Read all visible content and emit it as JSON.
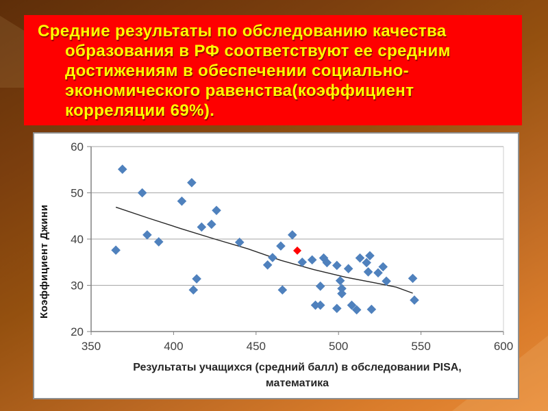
{
  "slide": {
    "title_lines": [
      "Средние результаты по обследованию качества",
      "образования в РФ соответствуют ее средним",
      "достижениям в обеспечении социально-",
      "экономического равенства(коэффициент",
      "корреляции 69%)."
    ],
    "title_bg_color": "#fe0000",
    "title_text_color": "#ffff00"
  },
  "colors": {
    "background_top_left": "#5e2e09",
    "background_bottom_right": "#e98a36",
    "panel_bg": "#ffffff",
    "panel_border": "#8f8f8f",
    "axis": "#808080",
    "gridline": "#a6a6a6",
    "tick_label": "#404040",
    "trend_line": "#262626",
    "point_blue": "#4f81bd",
    "point_red": "#ff0000"
  },
  "chart_data": {
    "type": "scatter",
    "title": "",
    "xlabel": "Результаты учащихся (средний балл) в обследовании PISA, математика",
    "xlabel_lines": [
      "Результаты учащихся (средний балл) в обследовании PISA,",
      "математика"
    ],
    "ylabel": "Коэффициент Джини",
    "xlim": [
      350,
      600
    ],
    "ylim": [
      20,
      60
    ],
    "xticks": [
      350,
      400,
      450,
      500,
      550,
      600
    ],
    "yticks": [
      20,
      30,
      40,
      50,
      60
    ],
    "grid": "horizontal",
    "legend": "none",
    "series": [
      {
        "name": "countries",
        "marker": "diamond",
        "color": "#4f81bd",
        "points": [
          [
            365,
            37.6
          ],
          [
            369,
            55.1
          ],
          [
            381,
            50
          ],
          [
            384,
            40.9
          ],
          [
            391,
            39.4
          ],
          [
            405,
            48.2
          ],
          [
            411,
            52.2
          ],
          [
            412,
            29
          ],
          [
            414,
            31.4
          ],
          [
            417,
            42.6
          ],
          [
            423,
            43.2
          ],
          [
            426,
            46.2
          ],
          [
            440,
            39.3
          ],
          [
            457,
            34.4
          ],
          [
            460,
            36
          ],
          [
            465,
            38.5
          ],
          [
            466,
            29
          ],
          [
            472,
            40.9
          ],
          [
            478,
            35
          ],
          [
            484,
            35.5
          ],
          [
            486,
            25.7
          ],
          [
            489,
            25.7
          ],
          [
            489,
            29.8
          ],
          [
            491,
            35.9
          ],
          [
            493,
            34.9
          ],
          [
            499,
            34.3
          ],
          [
            499,
            25
          ],
          [
            501,
            31
          ],
          [
            502,
            29.3
          ],
          [
            502,
            28.2
          ],
          [
            506,
            33.6
          ],
          [
            508,
            25.7
          ],
          [
            511,
            24.7
          ],
          [
            513,
            35.9
          ],
          [
            517,
            34.9
          ],
          [
            518,
            32.9
          ],
          [
            519,
            36.4
          ],
          [
            520,
            24.8
          ],
          [
            524,
            32.7
          ],
          [
            527,
            34
          ],
          [
            529,
            30.9
          ],
          [
            545,
            31.5
          ],
          [
            546,
            26.8
          ]
        ]
      },
      {
        "name": "russia-highlight",
        "marker": "diamond",
        "color": "#ff0000",
        "points": [
          [
            475,
            37.5
          ]
        ]
      }
    ],
    "trend_line": {
      "color": "#262626",
      "points": [
        [
          365,
          46.9
        ],
        [
          385,
          44.5
        ],
        [
          405,
          42.2
        ],
        [
          425,
          40.0
        ],
        [
          445,
          37.9
        ],
        [
          465,
          35.4
        ],
        [
          485,
          33.4
        ],
        [
          505,
          31.7
        ],
        [
          524,
          30.4
        ],
        [
          535,
          29.6
        ],
        [
          545,
          28.3
        ]
      ]
    }
  }
}
